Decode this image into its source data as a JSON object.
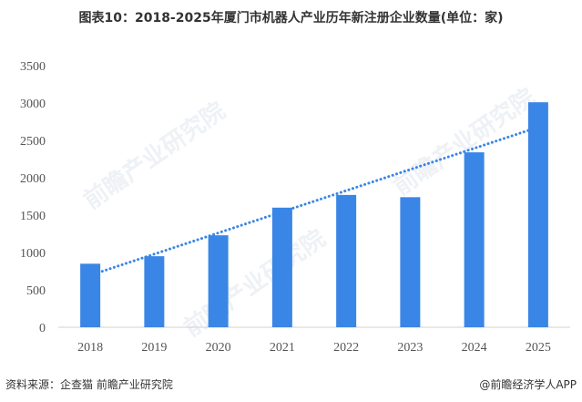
{
  "title": "图表10：2018-2025年厦门市机器人产业历年新注册企业数量(单位：家)",
  "source": "资料来源：企查猫 前瞻产业研究院",
  "brand": "@前瞻经济学人APP",
  "watermark": "前瞻产业研究院",
  "chart_data": {
    "type": "bar",
    "title": "图表10：2018-2025年厦门市机器人产业历年新注册企业数量(单位：家)",
    "categories": [
      "2018",
      "2019",
      "2020",
      "2021",
      "2022",
      "2023",
      "2024",
      "2025"
    ],
    "values": [
      850,
      950,
      1230,
      1600,
      1770,
      1740,
      2340,
      3010
    ],
    "ylim": [
      0,
      3500
    ],
    "yticks": [
      0,
      500,
      1000,
      1500,
      2000,
      2500,
      3000,
      3500
    ],
    "trendline": "linear, dotted",
    "grid": false,
    "legend": "none",
    "bar_color": "#3A86E6",
    "trend_color": "#3A86E6"
  }
}
